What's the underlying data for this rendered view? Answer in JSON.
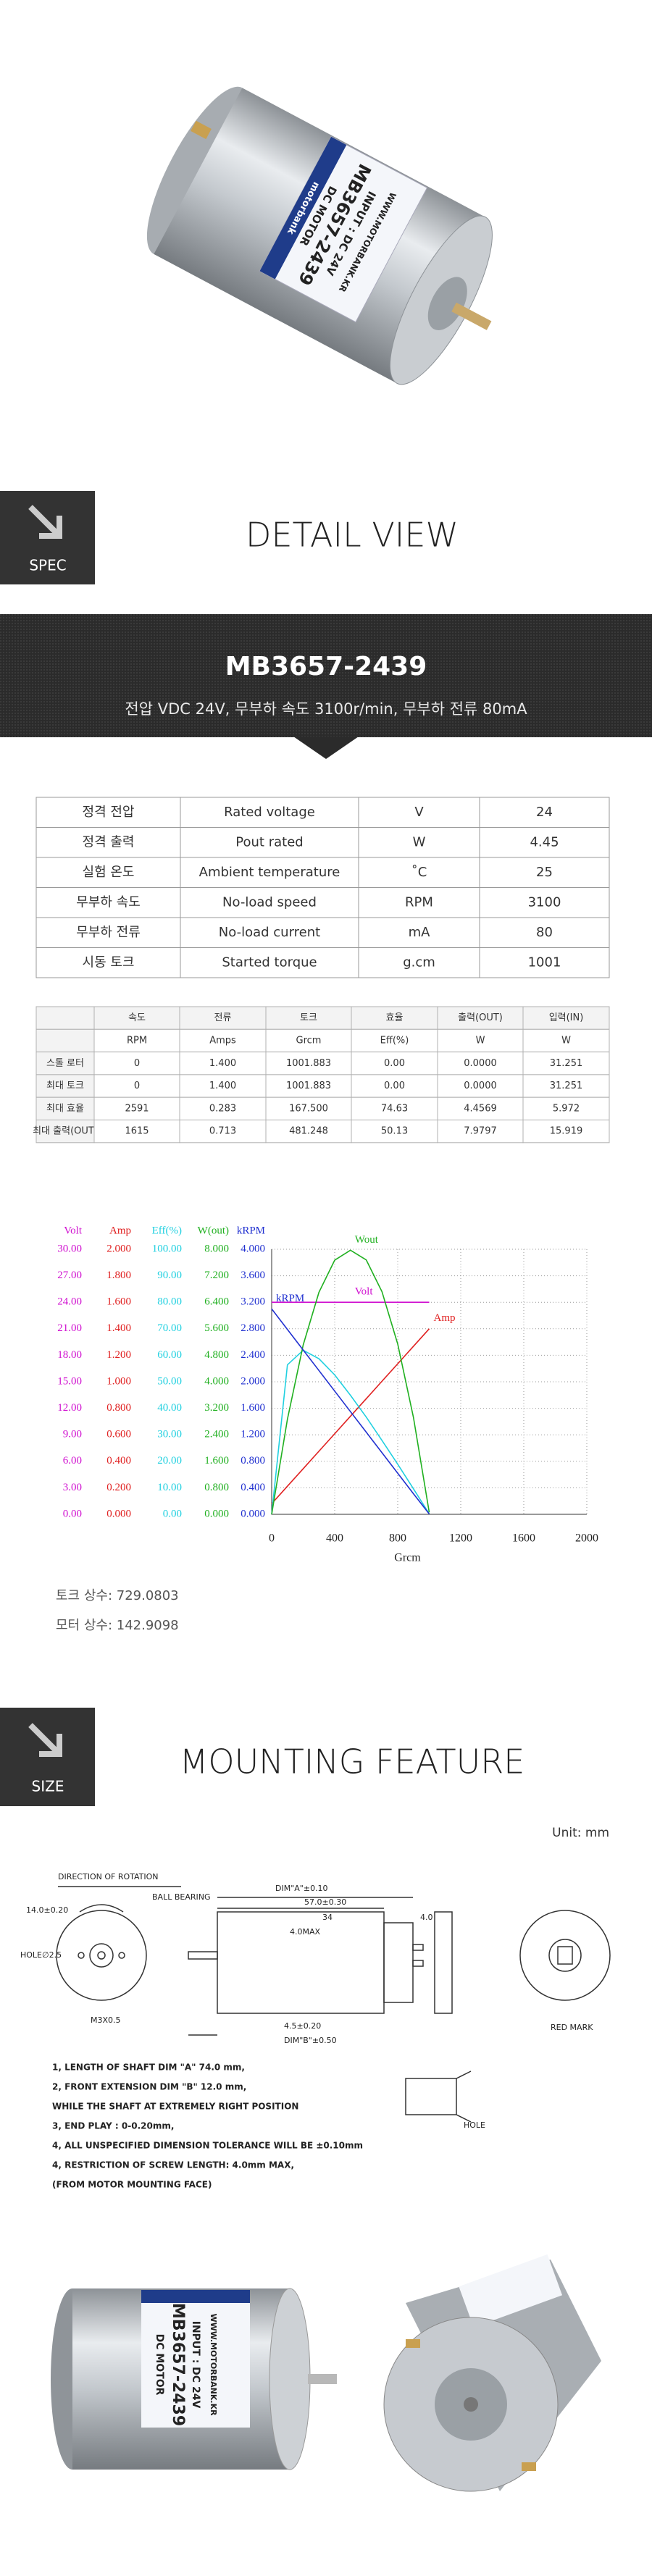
{
  "hero": {
    "brand": "motorbank",
    "label_lines": [
      "DC MOTOR",
      "MB3657-2439",
      "INPUT : DC 24V",
      "WWW.MOTORBANK.KR"
    ]
  },
  "spec_badge": "SPEC",
  "detail_title": "DETAIL VIEW",
  "model": {
    "name": "MB3657-2439",
    "summary": "전압 VDC 24V,  무부하 속도 3100r/min, 무부하 전류 80mA"
  },
  "spec_table": [
    [
      "정격 전압",
      "Rated voltage",
      "V",
      "24"
    ],
    [
      "정격 출력",
      "Pout rated",
      "W",
      "4.45"
    ],
    [
      "실험 온도",
      "Ambient temperature",
      "˚C",
      "25"
    ],
    [
      "무부하 속도",
      "No-load speed",
      "RPM",
      "3100"
    ],
    [
      "무부하 전류",
      "No-load current",
      "mA",
      "80"
    ],
    [
      "시동 토크",
      "Started torque",
      "g.cm",
      "1001"
    ]
  ],
  "perf_table": {
    "header": [
      "속도",
      "전류",
      "토크",
      "효율",
      "출력(OUT)",
      "입력(IN)"
    ],
    "units": [
      "RPM",
      "Amps",
      "Grcm",
      "Eff(%)",
      "W",
      "W"
    ],
    "rows": [
      {
        "label": "스톨 로터",
        "cells": [
          "0",
          "1.400",
          "1001.883",
          "0.00",
          "0.0000",
          "31.251"
        ]
      },
      {
        "label": "최대 토크",
        "cells": [
          "0",
          "1.400",
          "1001.883",
          "0.00",
          "0.0000",
          "31.251"
        ]
      },
      {
        "label": "최대 효율",
        "cells": [
          "2591",
          "0.283",
          "167.500",
          "74.63",
          "4.4569",
          "5.972"
        ]
      },
      {
        "label": "최대 출력(OUT)",
        "cells": [
          "1615",
          "0.713",
          "481.248",
          "50.13",
          "7.9797",
          "15.919"
        ]
      }
    ]
  },
  "chart_data": {
    "type": "line",
    "xlabel": "Grcm",
    "x": [
      0,
      100,
      200,
      300,
      400,
      500,
      600,
      700,
      800,
      900,
      1000
    ],
    "xlim": [
      0,
      2000
    ],
    "xticks": [
      0,
      400,
      800,
      1200,
      1600,
      2000
    ],
    "grid": true,
    "axes": [
      {
        "label": "Volt",
        "color": "#d010d0",
        "ylim": [
          0,
          30
        ],
        "yticks": [
          {
            "value": 0,
            "label": "0.00"
          },
          {
            "value": 3,
            "label": "3.00"
          },
          {
            "value": 6,
            "label": "6.00"
          },
          {
            "value": 9,
            "label": "9.00"
          },
          {
            "value": 12,
            "label": "12.00"
          },
          {
            "value": 15,
            "label": "15.00"
          },
          {
            "value": 18,
            "label": "18.00"
          },
          {
            "value": 21,
            "label": "21.00"
          },
          {
            "value": 24,
            "label": "24.00"
          },
          {
            "value": 27,
            "label": "27.00"
          },
          {
            "value": 30,
            "label": "30.00"
          }
        ]
      },
      {
        "label": "Amp",
        "color": "#e02020",
        "ylim": [
          0,
          2
        ],
        "yticks": [
          {
            "value": 0,
            "label": "0.000"
          },
          {
            "value": 0.2,
            "label": "0.200"
          },
          {
            "value": 0.4,
            "label": "0.400"
          },
          {
            "value": 0.6,
            "label": "0.600"
          },
          {
            "value": 0.8,
            "label": "0.800"
          },
          {
            "value": 1,
            "label": "1.000"
          },
          {
            "value": 1.2,
            "label": "1.200"
          },
          {
            "value": 1.4,
            "label": "1.400"
          },
          {
            "value": 1.6,
            "label": "1.600"
          },
          {
            "value": 1.8,
            "label": "1.800"
          },
          {
            "value": 2,
            "label": "2.000"
          }
        ]
      },
      {
        "label": "Eff(%)",
        "color": "#20d0e0",
        "ylim": [
          0,
          100
        ],
        "yticks": [
          {
            "value": 0,
            "label": "0.00"
          },
          {
            "value": 10,
            "label": "10.00"
          },
          {
            "value": 20,
            "label": "20.00"
          },
          {
            "value": 30,
            "label": "30.00"
          },
          {
            "value": 40,
            "label": "40.00"
          },
          {
            "value": 50,
            "label": "50.00"
          },
          {
            "value": 60,
            "label": "60.00"
          },
          {
            "value": 70,
            "label": "70.00"
          },
          {
            "value": 80,
            "label": "80.00"
          },
          {
            "value": 90,
            "label": "90.00"
          },
          {
            "value": 100,
            "label": "100.00"
          }
        ]
      },
      {
        "label": "W(out)",
        "color": "#20b020",
        "ylim": [
          0,
          8
        ],
        "yticks": [
          {
            "value": 0,
            "label": "0.000"
          },
          {
            "value": 0.8,
            "label": "0.800"
          },
          {
            "value": 1.6,
            "label": "1.600"
          },
          {
            "value": 2.4,
            "label": "2.400"
          },
          {
            "value": 3.2,
            "label": "3.200"
          },
          {
            "value": 4,
            "label": "4.000"
          },
          {
            "value": 4.8,
            "label": "4.800"
          },
          {
            "value": 5.6,
            "label": "5.600"
          },
          {
            "value": 6.4,
            "label": "6.400"
          },
          {
            "value": 7.2,
            "label": "7.200"
          },
          {
            "value": 8,
            "label": "8.000"
          }
        ]
      },
      {
        "label": "kRPM",
        "color": "#2030d0",
        "ylim": [
          0,
          4
        ],
        "yticks": [
          {
            "value": 0,
            "label": "0.000"
          },
          {
            "value": 0.4,
            "label": "0.400"
          },
          {
            "value": 0.8,
            "label": "0.800"
          },
          {
            "value": 1.2,
            "label": "1.200"
          },
          {
            "value": 1.6,
            "label": "1.600"
          },
          {
            "value": 2,
            "label": "2.000"
          },
          {
            "value": 2.4,
            "label": "2.400"
          },
          {
            "value": 2.8,
            "label": "2.800"
          },
          {
            "value": 3.2,
            "label": "3.200"
          },
          {
            "value": 3.6,
            "label": "3.600"
          },
          {
            "value": 4,
            "label": "4.000"
          }
        ]
      }
    ],
    "series": [
      {
        "name": "Volt",
        "axis": 0,
        "color": "#d010d0",
        "values": [
          24,
          24,
          24,
          24,
          24,
          24,
          24,
          24,
          24,
          24,
          24
        ]
      },
      {
        "name": "Amp",
        "axis": 1,
        "color": "#e02020",
        "values": [
          0.08,
          0.212,
          0.344,
          0.476,
          0.608,
          0.74,
          0.872,
          1.004,
          1.136,
          1.268,
          1.4
        ]
      },
      {
        "axis": 2,
        "color": "#20d0e0",
        "values": [
          0,
          56.4,
          61.9,
          58.7,
          52.6,
          44.9,
          36.7,
          27.9,
          18.9,
          9.6,
          0.2
        ]
      },
      {
        "name": "Wout",
        "axis": 3,
        "color": "#20b020",
        "values": [
          0,
          2.87,
          5.11,
          6.7,
          7.67,
          7.97,
          7.68,
          6.72,
          5.14,
          2.92,
          0.06
        ]
      },
      {
        "name": "kRPM",
        "axis": 4,
        "color": "#2030d0",
        "values": [
          3.1,
          2.79,
          2.48,
          2.17,
          1.86,
          1.55,
          1.24,
          0.93,
          0.62,
          0.31,
          0.006
        ]
      }
    ]
  },
  "constants": [
    "토크 상수: 729.0803",
    "모터 상수: 142.9098"
  ],
  "size_badge": "SIZE",
  "mounting_title": "MOUNTING FEATURE",
  "unit": "Unit: mm",
  "drawing": {
    "labels": [
      "DIRECTION OF ROTATION",
      "14.0±0.20",
      "HOLE∅2.5",
      "M3X0.5",
      "BALL BEARING",
      "DIM\"A\"±0.10",
      "57.0±0.30",
      "34",
      "4.0MAX",
      "4.5±0.20",
      "DIM\"B\"±0.50",
      "4.0",
      "RED MARK",
      "HOLE"
    ],
    "notes": [
      "1, LENGTH OF SHAFT DIM \"A\" 74.0 mm,",
      "2, FRONT EXTENSION DIM \"B\" 12.0 mm,",
      "    WHILE THE SHAFT AT EXTREMELY RIGHT POSITION",
      "3, END PLAY : 0-0.20mm,",
      "4, ALL UNSPECIFIED DIMENSION TOLERANCE WILL BE ±0.10mm",
      "4, RESTRICTION OF SCREW LENGTH: 4.0mm MAX,",
      "    (FROM MOTOR MOUNTING FACE)"
    ]
  }
}
